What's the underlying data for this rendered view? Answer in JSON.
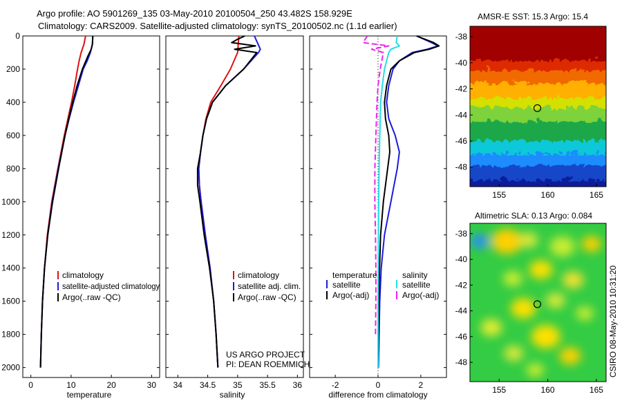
{
  "header": {
    "title_line1": "Argo profile: AO 5901269_135 03-May-2010 20100504_250 43.482S 158.929E",
    "title_line2": "Climatology: CARS2009. Satellite-adjusted climatology: synTS_20100502.nc (1.1d earlier)"
  },
  "colors": {
    "climatology": "#e01010",
    "satellite": "#1a1adc",
    "argo": "#000000",
    "sal_satellite": "#22dde8",
    "sal_argo": "#ee22ee"
  },
  "credits": {
    "project": "US ARGO PROJECT",
    "pi": "PI: DEAN ROEMMICH",
    "stamp": "CSIRO 08-May-2010 10:31:20"
  },
  "chart_data": [
    {
      "id": "temperature",
      "type": "line",
      "xlabel": "temperature",
      "xlim": [
        -2,
        32
      ],
      "ylim": [
        0,
        2060
      ],
      "xticks": [
        "0",
        "10",
        "20",
        "30"
      ],
      "yticks": [
        "0",
        "200",
        "400",
        "600",
        "800",
        "1000",
        "1200",
        "1400",
        "1600",
        "1800",
        "2000"
      ],
      "legend": [
        "climatology",
        "satellite-adjusted climatology",
        "Argo(..raw -QC)"
      ],
      "series": [
        {
          "name": "climatology",
          "color_key": "climatology",
          "depth": [
            0,
            50,
            100,
            150,
            200,
            300,
            400,
            500,
            600,
            800,
            1000,
            1200,
            1400,
            1600,
            1800,
            2000
          ],
          "values": [
            13.6,
            13.2,
            12.5,
            12.0,
            11.6,
            10.9,
            10.1,
            9.2,
            8.3,
            6.7,
            5.2,
            4.1,
            3.4,
            2.9,
            2.6,
            2.4
          ]
        },
        {
          "name": "satellite-adjusted climatology",
          "color_key": "satellite",
          "depth": [
            0,
            50,
            100,
            150,
            200,
            300,
            400,
            500,
            600,
            800,
            1000,
            1200,
            1400,
            1600,
            1800,
            2000
          ],
          "values": [
            15.4,
            15.3,
            14.8,
            14.0,
            13.0,
            11.8,
            10.6,
            9.5,
            8.5,
            6.8,
            5.3,
            4.2,
            3.4,
            2.9,
            2.6,
            2.4
          ]
        },
        {
          "name": "Argo(..raw -QC)",
          "color_key": "argo",
          "depth": [
            0,
            50,
            80,
            120,
            200,
            300,
            400,
            500,
            600,
            800,
            1000,
            1200,
            1400,
            1600,
            1800,
            2000
          ],
          "values": [
            15.4,
            15.3,
            15.0,
            14.2,
            12.8,
            11.5,
            10.4,
            9.4,
            8.5,
            6.9,
            5.4,
            4.2,
            3.4,
            2.9,
            2.6,
            2.4
          ]
        }
      ]
    },
    {
      "id": "salinity",
      "type": "line",
      "xlabel": "salinity",
      "xlim": [
        33.8,
        36.1
      ],
      "ylim": [
        0,
        2060
      ],
      "xticks": [
        "34",
        "34.5",
        "35",
        "35.5",
        "36"
      ],
      "legend": [
        "climatology",
        "satellite adj. clim.",
        "Argo(..raw -QC)"
      ],
      "series": [
        {
          "name": "climatology",
          "color_key": "climatology",
          "depth": [
            0,
            100,
            200,
            300,
            400,
            500,
            600,
            700,
            800,
            900,
            1000,
            1200,
            1400,
            1600,
            1800,
            2000
          ],
          "values": [
            35.02,
            35.0,
            34.88,
            34.72,
            34.55,
            34.47,
            34.42,
            34.38,
            34.35,
            34.36,
            34.39,
            34.46,
            34.54,
            34.6,
            34.64,
            34.67
          ]
        },
        {
          "name": "satellite adj. clim.",
          "color_key": "satellite",
          "depth": [
            0,
            80,
            100,
            200,
            300,
            400,
            500,
            600,
            700,
            800,
            900,
            1000,
            1200,
            1400,
            1600,
            1800,
            2000
          ],
          "values": [
            35.28,
            35.38,
            35.35,
            35.1,
            34.8,
            34.58,
            34.48,
            34.42,
            34.38,
            34.35,
            34.36,
            34.39,
            34.46,
            34.54,
            34.6,
            34.64,
            34.67
          ]
        },
        {
          "name": "Argo(..raw -QC)",
          "color_key": "argo",
          "depth": [
            0,
            20,
            40,
            60,
            80,
            100,
            200,
            300,
            400,
            500,
            600,
            700,
            800,
            900,
            1000,
            1200,
            1400,
            1600,
            1800,
            2000
          ],
          "values": [
            35.12,
            35.0,
            34.9,
            35.3,
            34.95,
            35.32,
            35.1,
            34.8,
            34.58,
            34.48,
            34.42,
            34.38,
            34.33,
            34.33,
            34.37,
            34.44,
            34.53,
            34.6,
            34.64,
            34.67
          ]
        }
      ]
    },
    {
      "id": "difference",
      "type": "line",
      "xlabel": "difference from climatology",
      "xlim": [
        -3.2,
        3.2
      ],
      "ylim": [
        0,
        2060
      ],
      "xticks": [
        "-2",
        "0",
        "2"
      ],
      "legend_temperature_title": "temperature",
      "legend_salinity_title": "salinity",
      "legend": [
        "satellite",
        "Argo(-adj)",
        "satellite",
        "Argo(-adj)"
      ],
      "series": [
        {
          "name": "temperature satellite",
          "color_key": "satellite",
          "depth": [
            0,
            40,
            60,
            80,
            100,
            150,
            200,
            300,
            400,
            500,
            600,
            700,
            800,
            1000,
            1200,
            1400,
            1600,
            1800,
            2000
          ],
          "values": [
            1.8,
            2.5,
            2.8,
            2.3,
            1.6,
            1.0,
            0.7,
            0.5,
            0.4,
            0.5,
            0.8,
            1.0,
            0.9,
            0.6,
            0.3,
            0.15,
            0.08,
            0.05,
            0.02
          ]
        },
        {
          "name": "temperature Argo(-adj)",
          "color_key": "argo",
          "depth": [
            0,
            40,
            60,
            80,
            100,
            150,
            200,
            300,
            400,
            500,
            600,
            700,
            800,
            1000,
            1200,
            1400,
            1600,
            1800,
            2000
          ],
          "values": [
            1.8,
            2.6,
            2.85,
            2.4,
            1.7,
            1.0,
            0.6,
            0.4,
            0.3,
            0.35,
            0.5,
            0.55,
            0.45,
            0.25,
            0.12,
            0.07,
            0.04,
            0.02,
            0.0
          ]
        },
        {
          "name": "salinity satellite",
          "color_key": "sal_satellite",
          "depth": [
            0,
            40,
            60,
            80,
            100,
            200,
            300,
            400,
            600,
            800,
            1000,
            1200,
            1400,
            1600,
            1800,
            2000
          ],
          "values": [
            0.9,
            0.85,
            1.0,
            0.6,
            0.5,
            0.3,
            0.2,
            0.12,
            0.08,
            0.05,
            0.03,
            0.02,
            0.01,
            0.0,
            0.0,
            0.0
          ]
        },
        {
          "name": "salinity Argo(-adj)",
          "color_key": "sal_argo",
          "depth": [
            0,
            40,
            60,
            80,
            100,
            200,
            300,
            400,
            600,
            800,
            1000,
            1200,
            1400,
            1600,
            1800
          ],
          "values": [
            -0.5,
            -0.7,
            0.5,
            -0.3,
            0.25,
            0.1,
            0.0,
            -0.05,
            -0.1,
            -0.15,
            -0.15,
            -0.12,
            -0.1,
            -0.1,
            -0.12
          ]
        }
      ]
    },
    {
      "id": "amsr_sst",
      "type": "heatmap",
      "title": "AMSR-E SST: 15.3 Argo: 15.4",
      "xlim": [
        152,
        166
      ],
      "ylim": [
        -49.5,
        -37.2
      ],
      "xticks": [
        "155",
        "160",
        "165"
      ],
      "yticks": [
        "-38",
        "-40",
        "-42",
        "-44",
        "-46",
        "-48"
      ],
      "marker": {
        "lon": 158.93,
        "lat": -43.48
      },
      "bands": [
        {
          "lat_top": -37.2,
          "color": "#a00000"
        },
        {
          "lat_top": -39.6,
          "color": "#dd2a00"
        },
        {
          "lat_top": -40.4,
          "color": "#f06a00"
        },
        {
          "lat_top": -41.4,
          "color": "#ffb000"
        },
        {
          "lat_top": -42.5,
          "color": "#d4e000"
        },
        {
          "lat_top": -43.3,
          "color": "#7ed23a"
        },
        {
          "lat_top": -44.3,
          "color": "#1ea84a"
        },
        {
          "lat_top": -45.8,
          "color": "#10c8d8"
        },
        {
          "lat_top": -46.8,
          "color": "#1a8cff"
        },
        {
          "lat_top": -47.7,
          "color": "#1246c8"
        },
        {
          "lat_top": -48.8,
          "color": "#0c1e9a"
        }
      ]
    },
    {
      "id": "altimetric_sla",
      "type": "heatmap",
      "title": "Altimetric SLA: 0.13 Argo: 0.084",
      "xlim": [
        152,
        166
      ],
      "ylim": [
        -49.5,
        -37.2
      ],
      "xticks": [
        "155",
        "160",
        "165"
      ],
      "yticks": [
        "-38",
        "-40",
        "-42",
        "-44",
        "-46",
        "-48"
      ],
      "marker": {
        "lon": 158.93,
        "lat": -43.48
      },
      "base_color": "#33cc44",
      "blobs": [
        {
          "lon": 155.3,
          "lat": -38.8,
          "r": 1.0,
          "color": "#e03010"
        },
        {
          "lon": 153.0,
          "lat": -38.6,
          "r": 0.9,
          "color": "#2a8cff"
        },
        {
          "lon": 155.8,
          "lat": -38.6,
          "r": 1.6,
          "color": "#ffd000"
        },
        {
          "lon": 158.0,
          "lat": -38.5,
          "r": 1.0,
          "color": "#d8e83a"
        },
        {
          "lon": 161.5,
          "lat": -39.0,
          "r": 1.3,
          "color": "#c8ec30"
        },
        {
          "lon": 164.5,
          "lat": -38.8,
          "r": 1.0,
          "color": "#ffd000"
        },
        {
          "lon": 159.3,
          "lat": -40.8,
          "r": 1.2,
          "color": "#ffe000"
        },
        {
          "lon": 162.6,
          "lat": -41.6,
          "r": 1.1,
          "color": "#f0e030"
        },
        {
          "lon": 156.4,
          "lat": -41.5,
          "r": 1.0,
          "color": "#c8ec30"
        },
        {
          "lon": 157.5,
          "lat": -43.8,
          "r": 1.3,
          "color": "#ffe000"
        },
        {
          "lon": 160.8,
          "lat": -43.2,
          "r": 1.0,
          "color": "#d8e83a"
        },
        {
          "lon": 163.8,
          "lat": -44.2,
          "r": 0.9,
          "color": "#c8ec30"
        },
        {
          "lon": 154.2,
          "lat": -45.3,
          "r": 1.1,
          "color": "#e4ec30"
        },
        {
          "lon": 159.8,
          "lat": -46.0,
          "r": 1.5,
          "color": "#ffe000"
        },
        {
          "lon": 156.5,
          "lat": -47.3,
          "r": 1.0,
          "color": "#d8e83a"
        },
        {
          "lon": 162.3,
          "lat": -47.5,
          "r": 1.1,
          "color": "#ffd000"
        },
        {
          "lon": 158.7,
          "lat": -48.6,
          "r": 0.9,
          "color": "#c8ec30"
        }
      ]
    }
  ]
}
